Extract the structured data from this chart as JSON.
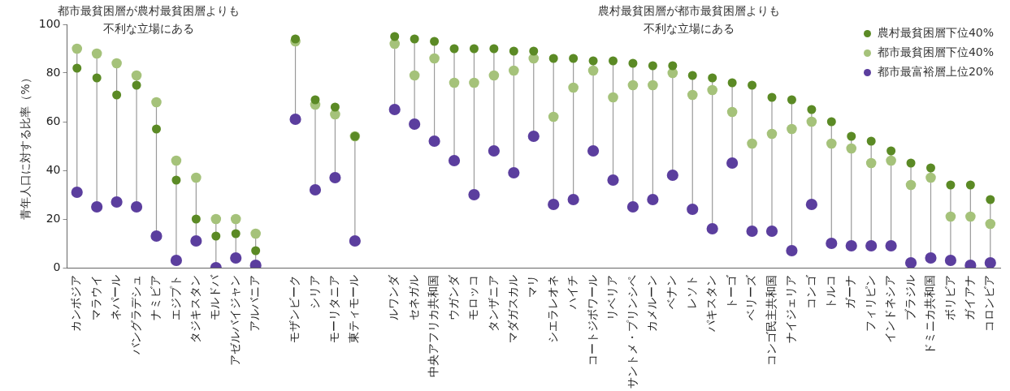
{
  "chart_data": {
    "type": "scatter",
    "ylabel": "青年人口に対する比率（%）",
    "annotations": [
      "都市最貧困層が農村最貧困層よりも不利な立場にある",
      "農村最貧困層が都市最貧困層よりも不利な立場にある"
    ],
    "categories": [
      "カンボジア",
      "マラウイ",
      "ネパール",
      "バングラデシュ",
      "ナミビア",
      "エジプト",
      "タジキスタン",
      "モルドバ",
      "アゼルバイジャン",
      "アルバニア",
      null,
      "モザンビーク",
      "シリア",
      "モーリタニア",
      "東ティモール",
      null,
      "ルワンダ",
      "セネガル",
      "中央アフリカ共和国",
      "ウガンダ",
      "モロッコ",
      "タンザニア",
      "マダガスカル",
      "マリ",
      "シエラレオネ",
      "ハイチ",
      "コートジボワール",
      "リベリア",
      "サントメ・プリンシペ",
      "カメルーン",
      "ベナン",
      "レソト",
      "パキスタン",
      "トーゴ",
      "ベリーズ",
      "コンゴ民主共和国",
      "ナイジェリア",
      "コンゴ",
      "トルコ",
      "ガーナ",
      "フィリピン",
      "インドネシア",
      "ブラジル",
      "ドミニカ共和国",
      "ボリビア",
      "ガイアナ",
      "コロンビア"
    ],
    "series": [
      {
        "name": "農村最貧困層下位40%",
        "color": "#5b8a25",
        "values": [
          82,
          78,
          71,
          75,
          57,
          36,
          20,
          13,
          14,
          7,
          null,
          94,
          69,
          66,
          54,
          null,
          95,
          94,
          93,
          90,
          90,
          90,
          89,
          89,
          86,
          86,
          85,
          85,
          84,
          83,
          83,
          79,
          78,
          76,
          75,
          70,
          69,
          65,
          60,
          54,
          52,
          48,
          43,
          41,
          34,
          34,
          28
        ]
      },
      {
        "name": "都市最貧困層下位40%",
        "color": "#a5c27a",
        "values": [
          90,
          88,
          84,
          79,
          68,
          44,
          37,
          20,
          20,
          14,
          null,
          93,
          67,
          63,
          54,
          null,
          92,
          79,
          86,
          76,
          76,
          79,
          81,
          86,
          62,
          74,
          81,
          70,
          75,
          75,
          80,
          71,
          73,
          64,
          51,
          55,
          57,
          60,
          51,
          49,
          43,
          44,
          34,
          37,
          21,
          21,
          18
        ]
      },
      {
        "name": "都市最富裕層上位20%",
        "color": "#5b3e9e",
        "values": [
          31,
          25,
          27,
          25,
          13,
          3,
          11,
          0,
          4,
          1,
          null,
          61,
          32,
          37,
          11,
          null,
          65,
          59,
          52,
          44,
          30,
          48,
          39,
          54,
          26,
          28,
          48,
          36,
          25,
          28,
          38,
          24,
          16,
          43,
          15,
          15,
          7,
          26,
          10,
          9,
          9,
          9,
          2,
          4,
          3,
          1,
          2
        ]
      }
    ],
    "ylim": [
      0,
      100
    ],
    "yticks": [
      0,
      20,
      40,
      60,
      80,
      100
    ],
    "grid": false,
    "legend": "top right",
    "marker": "circle"
  }
}
